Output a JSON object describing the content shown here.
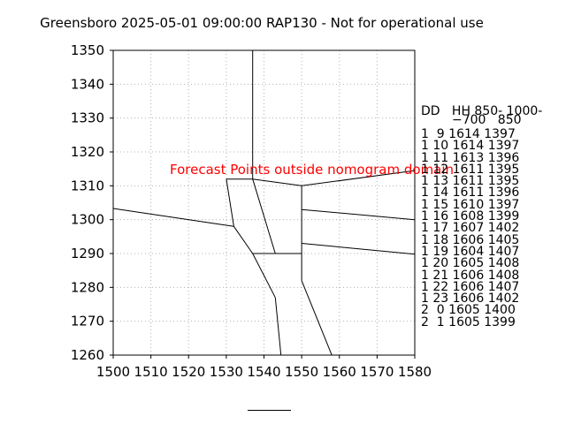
{
  "title": "Greensboro 2025-05-01 09:00:00 RAP130 - Not for operational use",
  "annotation": {
    "text": "Forecast Points outside nomogram domain",
    "color": "#ff0000"
  },
  "table": {
    "header_line1": "DD   HH 850- 1000-",
    "header_line2": "−700   850",
    "rows": [
      "1  9 1614 1397",
      "1 10 1614 1397",
      "1 11 1613 1396",
      "1 12 1611 1395",
      "1 13 1611 1395",
      "1 14 1611 1396",
      "1 15 1610 1397",
      "1 16 1608 1399",
      "1 17 1607 1402",
      "1 18 1606 1405",
      "1 19 1604 1407",
      "1 20 1605 1408",
      "1 21 1606 1408",
      "1 22 1606 1407",
      "1 23 1606 1402",
      "2  0 1605 1400",
      "2  1 1605 1399"
    ]
  },
  "chart_data": {
    "type": "line",
    "title": "Greensboro 2025-05-01 09:00:00 RAP130 - Not for operational use",
    "xlabel": "",
    "ylabel": "",
    "xlim": [
      1500,
      1580
    ],
    "ylim": [
      1260,
      1350
    ],
    "xticks": [
      1500,
      1510,
      1520,
      1530,
      1540,
      1550,
      1560,
      1570,
      1580
    ],
    "yticks": [
      1260,
      1270,
      1280,
      1290,
      1300,
      1310,
      1320,
      1330,
      1340,
      1350
    ],
    "grid": true,
    "grid_style": "dotted",
    "series": [
      {
        "points": [
          [
            1537,
            1350
          ],
          [
            1537,
            1312
          ]
        ]
      },
      {
        "points": [
          [
            1530,
            1312
          ],
          [
            1537,
            1312
          ]
        ]
      },
      {
        "points": [
          [
            1537,
            1312
          ],
          [
            1550,
            1310
          ]
        ]
      },
      {
        "points": [
          [
            1550,
            1310
          ],
          [
            1580,
            1314.5
          ]
        ]
      },
      {
        "points": [
          [
            1530,
            1312
          ],
          [
            1532,
            1298
          ]
        ]
      },
      {
        "points": [
          [
            1500,
            1303.3
          ],
          [
            1532,
            1298
          ]
        ]
      },
      {
        "points": [
          [
            1532,
            1298
          ],
          [
            1537,
            1290
          ]
        ]
      },
      {
        "points": [
          [
            1537,
            1312
          ],
          [
            1543,
            1290
          ]
        ]
      },
      {
        "points": [
          [
            1550,
            1310
          ],
          [
            1550,
            1282
          ]
        ]
      },
      {
        "points": [
          [
            1537,
            1290
          ],
          [
            1550,
            1290
          ]
        ]
      },
      {
        "points": [
          [
            1550,
            1303
          ],
          [
            1580,
            1300
          ]
        ]
      },
      {
        "points": [
          [
            1550,
            1293
          ],
          [
            1580,
            1289.8
          ]
        ]
      },
      {
        "points": [
          [
            1537,
            1290
          ],
          [
            1543,
            1277
          ]
        ]
      },
      {
        "points": [
          [
            1543,
            1277
          ],
          [
            1544.5,
            1260
          ]
        ]
      },
      {
        "points": [
          [
            1550,
            1282
          ],
          [
            1558,
            1260
          ]
        ]
      }
    ]
  }
}
